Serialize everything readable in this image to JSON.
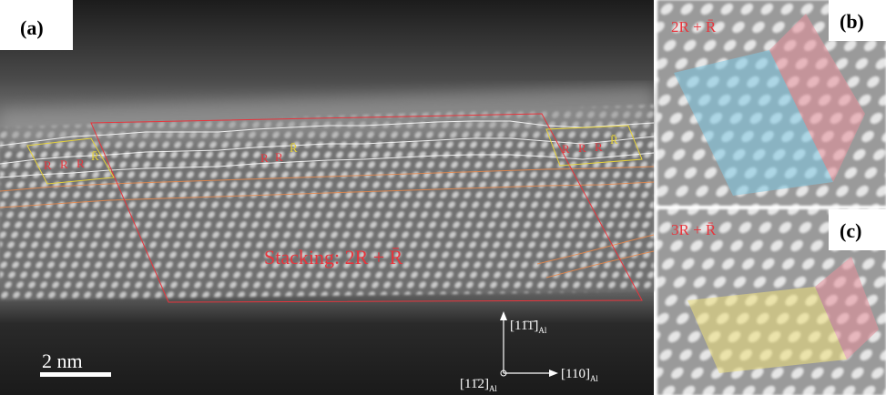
{
  "panels": [
    {
      "label": "(a)",
      "stacking": "Stacking: 2R + R̄",
      "left_labels": [
        "R",
        "R",
        "R",
        "R̄"
      ],
      "middle_labels": [
        "R",
        "R",
        "R̄"
      ],
      "right_labels": [
        "R",
        "R",
        "R",
        "R̄"
      ],
      "scale_bar": "2 nm",
      "axes": {
        "up": {
          "text": "[11̄1̄]",
          "sub": "Al"
        },
        "origin": {
          "text": "[11̄2]",
          "sub": "Al"
        },
        "right": {
          "text": "[110]",
          "sub": "Al"
        }
      }
    },
    {
      "label": "(b)",
      "stacking": "2R + R̄"
    },
    {
      "label": "(c)",
      "stacking": "3R + R̄"
    }
  ]
}
